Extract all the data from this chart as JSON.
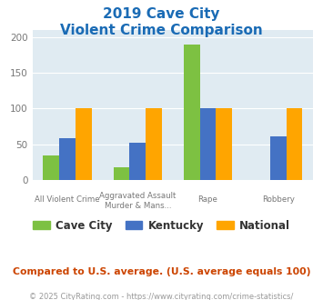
{
  "title_line1": "2019 Cave City",
  "title_line2": "Violent Crime Comparison",
  "series": {
    "Cave City": [
      35,
      18,
      190,
      0
    ],
    "Kentucky": [
      58,
      52,
      100,
      61
    ],
    "National": [
      100,
      100,
      100,
      100
    ]
  },
  "colors": {
    "Cave City": "#7DC142",
    "Kentucky": "#4472C4",
    "National": "#FFA500"
  },
  "line1_labels": [
    "",
    "Aggravated Assault",
    "",
    ""
  ],
  "line2_labels": [
    "All Violent Crime",
    "Murder & Mans...",
    "Rape",
    "Robbery"
  ],
  "ylim": [
    0,
    210
  ],
  "yticks": [
    0,
    50,
    100,
    150,
    200
  ],
  "bar_width": 0.23,
  "background_color": "#E0EBF2",
  "title_color": "#1A6BB5",
  "tick_label_color": "#777777",
  "legend_label_color": "#333333",
  "footer_text": "Compared to U.S. average. (U.S. average equals 100)",
  "copyright_text": "© 2025 CityRating.com - https://www.cityrating.com/crime-statistics/",
  "footer_color": "#CC4400",
  "copyright_color": "#999999",
  "grid_color": "#FFFFFF"
}
